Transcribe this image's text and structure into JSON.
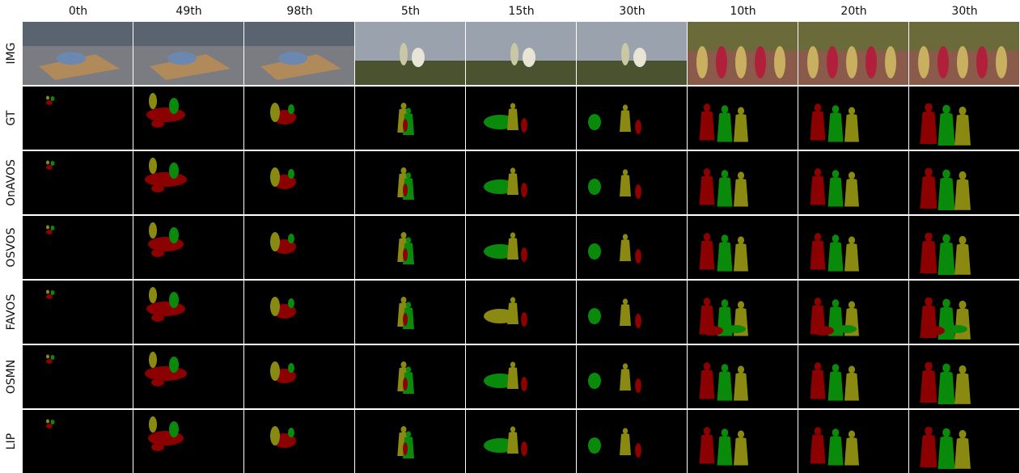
{
  "figure": {
    "columns": [
      "0th",
      "49th",
      "98th",
      "5th",
      "15th",
      "30th",
      "10th",
      "20th",
      "30th"
    ],
    "rows": [
      "IMG",
      "GT",
      "OnAVOS",
      "OSVOS",
      "FAVOS",
      "OSMN",
      "LIP"
    ]
  },
  "colors": {
    "red": "#8b0000",
    "green": "#0a8a0a",
    "olive": "#8a8a12",
    "background": "#000000"
  }
}
